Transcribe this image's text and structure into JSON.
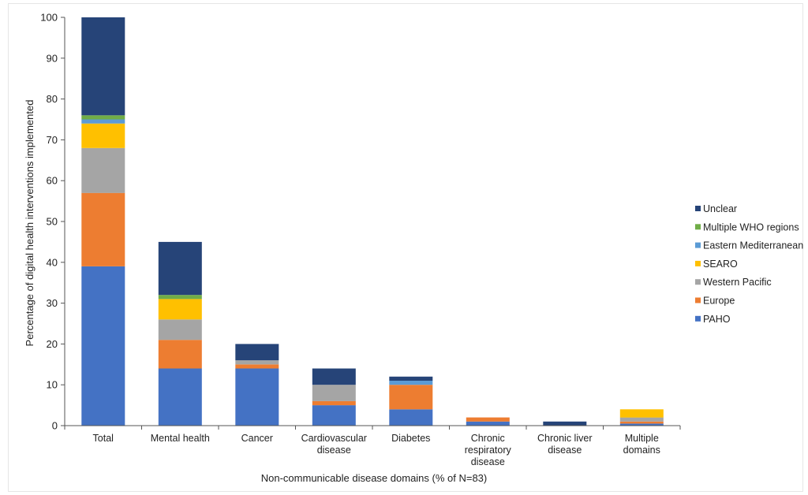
{
  "chart_data": {
    "type": "bar",
    "stacked": true,
    "xlabel": "Non-communicable  disease domains (% of N=83)",
    "ylabel": "Percentage of digital health interventions  implemented",
    "ylim": [
      0,
      100
    ],
    "yticks": [
      0,
      10,
      20,
      30,
      40,
      50,
      60,
      70,
      80,
      90,
      100
    ],
    "grid": false,
    "legend_position": "right",
    "categories": [
      [
        "Total"
      ],
      [
        "Mental health"
      ],
      [
        "Cancer"
      ],
      [
        "Cardiovascular",
        "disease"
      ],
      [
        "Diabetes"
      ],
      [
        "Chronic",
        "respiratory",
        "disease"
      ],
      [
        "Chronic liver",
        "disease"
      ],
      [
        "Multiple",
        "domains"
      ]
    ],
    "series": [
      {
        "name": "PAHO",
        "color": "#4472C4",
        "values": [
          39,
          14,
          14,
          5,
          4,
          1,
          0,
          0.5
        ]
      },
      {
        "name": "Europe",
        "color": "#ED7D31",
        "values": [
          18,
          7,
          1,
          1,
          6,
          1,
          0,
          0.5
        ]
      },
      {
        "name": "Western Pacific",
        "color": "#A5A5A5",
        "values": [
          11,
          5,
          1,
          4,
          0,
          0,
          0,
          1
        ]
      },
      {
        "name": "SEARO",
        "color": "#FFC000",
        "values": [
          6,
          5,
          0,
          0,
          0,
          0,
          0,
          2
        ]
      },
      {
        "name": "Eastern Mediterranean",
        "color": "#5B9BD5",
        "values": [
          1,
          0,
          0,
          0,
          1,
          0,
          0,
          0
        ]
      },
      {
        "name": "Multiple WHO regions",
        "color": "#70AD47",
        "values": [
          1,
          1,
          0,
          0,
          0,
          0,
          0,
          0
        ]
      },
      {
        "name": "Unclear",
        "color": "#264478",
        "values": [
          24,
          13,
          4,
          4,
          1,
          0,
          1,
          0
        ]
      }
    ],
    "legend_order": [
      "Unclear",
      "Multiple WHO regions",
      "Eastern Mediterranean",
      "SEARO",
      "Western Pacific",
      "Europe",
      "PAHO"
    ]
  }
}
